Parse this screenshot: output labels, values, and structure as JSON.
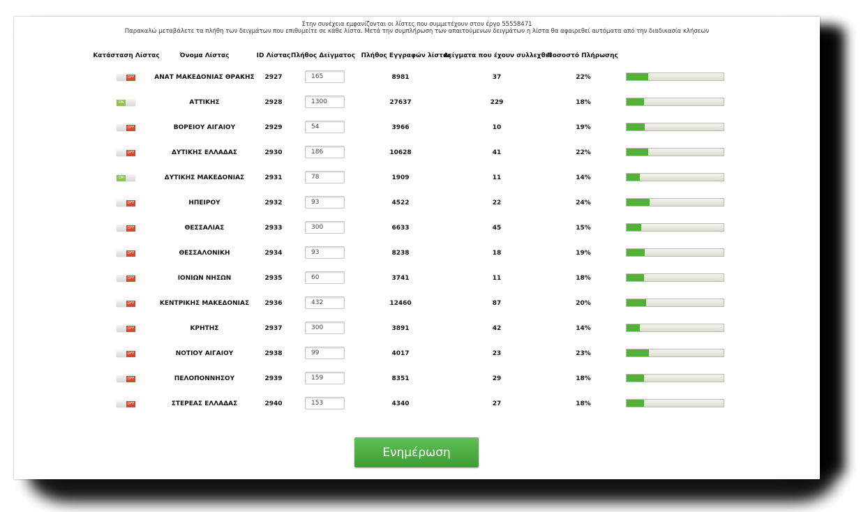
{
  "intro": {
    "line1": "Στην συνέχεια εμφανίζονται οι λίστες που συμμετέχουν στον έργο 55558471",
    "line2": "Παρακαλώ μεταβάλετε τα πλήθη των δειγμάτων που επιθυμείτε σε κάθε λίστα. Μετά την συμπλήρωση των απαιτούμενων δειγμάτων η λίστα θα αφαιρεθεί αυτόματα από την διαδικασία κλήσεων"
  },
  "headers": {
    "status": "Κατάσταση Λίστας",
    "name": "Όνομα Λίστας",
    "id": "ID Λίστας",
    "sample": "Πλήθος Δείγματος",
    "records": "Πλήθος Εγγραφών λίστας",
    "collected": "Δείγματα που έχουν συλλεχθεί",
    "percent": "Ποσοστό Πλήρωσης"
  },
  "toggle_labels": {
    "on": "ON",
    "off": "OFF"
  },
  "colors": {
    "progress_fill": "#52b038",
    "toggle_off": "#d9472b",
    "toggle_on": "#8cc63e",
    "button": "#4caf45"
  },
  "rows": [
    {
      "status": "off",
      "name": "ΑΝΑΤ ΜΑΚΕΔΟΝΙΑΣ ΘΡΑΚΗΣ",
      "id": "2927",
      "sample": "165",
      "records": "8981",
      "collected": "37",
      "percent": "22%",
      "progress": 0.22
    },
    {
      "status": "on",
      "name": "ΑΤΤΙΚΗΣ",
      "id": "2928",
      "sample": "1300",
      "records": "27637",
      "collected": "229",
      "percent": "18%",
      "progress": 0.18
    },
    {
      "status": "off",
      "name": "ΒΟΡΕΙΟΥ ΑΙΓΑΙΟΥ",
      "id": "2929",
      "sample": "54",
      "records": "3966",
      "collected": "10",
      "percent": "19%",
      "progress": 0.19
    },
    {
      "status": "off",
      "name": "ΔΥΤΙΚΗΣ ΕΛΛΑΔΑΣ",
      "id": "2930",
      "sample": "186",
      "records": "10628",
      "collected": "41",
      "percent": "22%",
      "progress": 0.22
    },
    {
      "status": "on",
      "name": "ΔΥΤΙΚΗΣ ΜΑΚΕΔΟΝΙΑΣ",
      "id": "2931",
      "sample": "78",
      "records": "1909",
      "collected": "11",
      "percent": "14%",
      "progress": 0.14
    },
    {
      "status": "off",
      "name": "ΗΠΕΙΡΟΥ",
      "id": "2932",
      "sample": "93",
      "records": "4522",
      "collected": "22",
      "percent": "24%",
      "progress": 0.24
    },
    {
      "status": "off",
      "name": "ΘΕΣΣΑΛΙΑΣ",
      "id": "2933",
      "sample": "300",
      "records": "6633",
      "collected": "45",
      "percent": "15%",
      "progress": 0.15
    },
    {
      "status": "off",
      "name": "ΘΕΣΣΑΛΟΝΙΚΗ",
      "id": "2934",
      "sample": "93",
      "records": "8238",
      "collected": "18",
      "percent": "19%",
      "progress": 0.19
    },
    {
      "status": "off",
      "name": "ΙΟΝΙΩΝ ΝΗΣΩΝ",
      "id": "2935",
      "sample": "60",
      "records": "3741",
      "collected": "11",
      "percent": "18%",
      "progress": 0.18
    },
    {
      "status": "off",
      "name": "ΚΕΝΤΡΙΚΗΣ ΜΑΚΕΔΟΝΙΑΣ",
      "id": "2936",
      "sample": "432",
      "records": "12460",
      "collected": "87",
      "percent": "20%",
      "progress": 0.2
    },
    {
      "status": "off",
      "name": "ΚΡΗΤΗΣ",
      "id": "2937",
      "sample": "300",
      "records": "3891",
      "collected": "42",
      "percent": "14%",
      "progress": 0.14
    },
    {
      "status": "off",
      "name": "ΝΟΤΙΟΥ ΑΙΓΑΙΟΥ",
      "id": "2938",
      "sample": "99",
      "records": "4017",
      "collected": "23",
      "percent": "23%",
      "progress": 0.23
    },
    {
      "status": "off",
      "name": "ΠΕΛΟΠΟΝΝΗΣΟΥ",
      "id": "2939",
      "sample": "159",
      "records": "8351",
      "collected": "29",
      "percent": "18%",
      "progress": 0.18
    },
    {
      "status": "off",
      "name": "ΣΤΕΡΕΑΣ ΕΛΛΑΔΑΣ",
      "id": "2940",
      "sample": "153",
      "records": "4340",
      "collected": "27",
      "percent": "18%",
      "progress": 0.18
    }
  ],
  "update_button": "Ενημέρωση"
}
